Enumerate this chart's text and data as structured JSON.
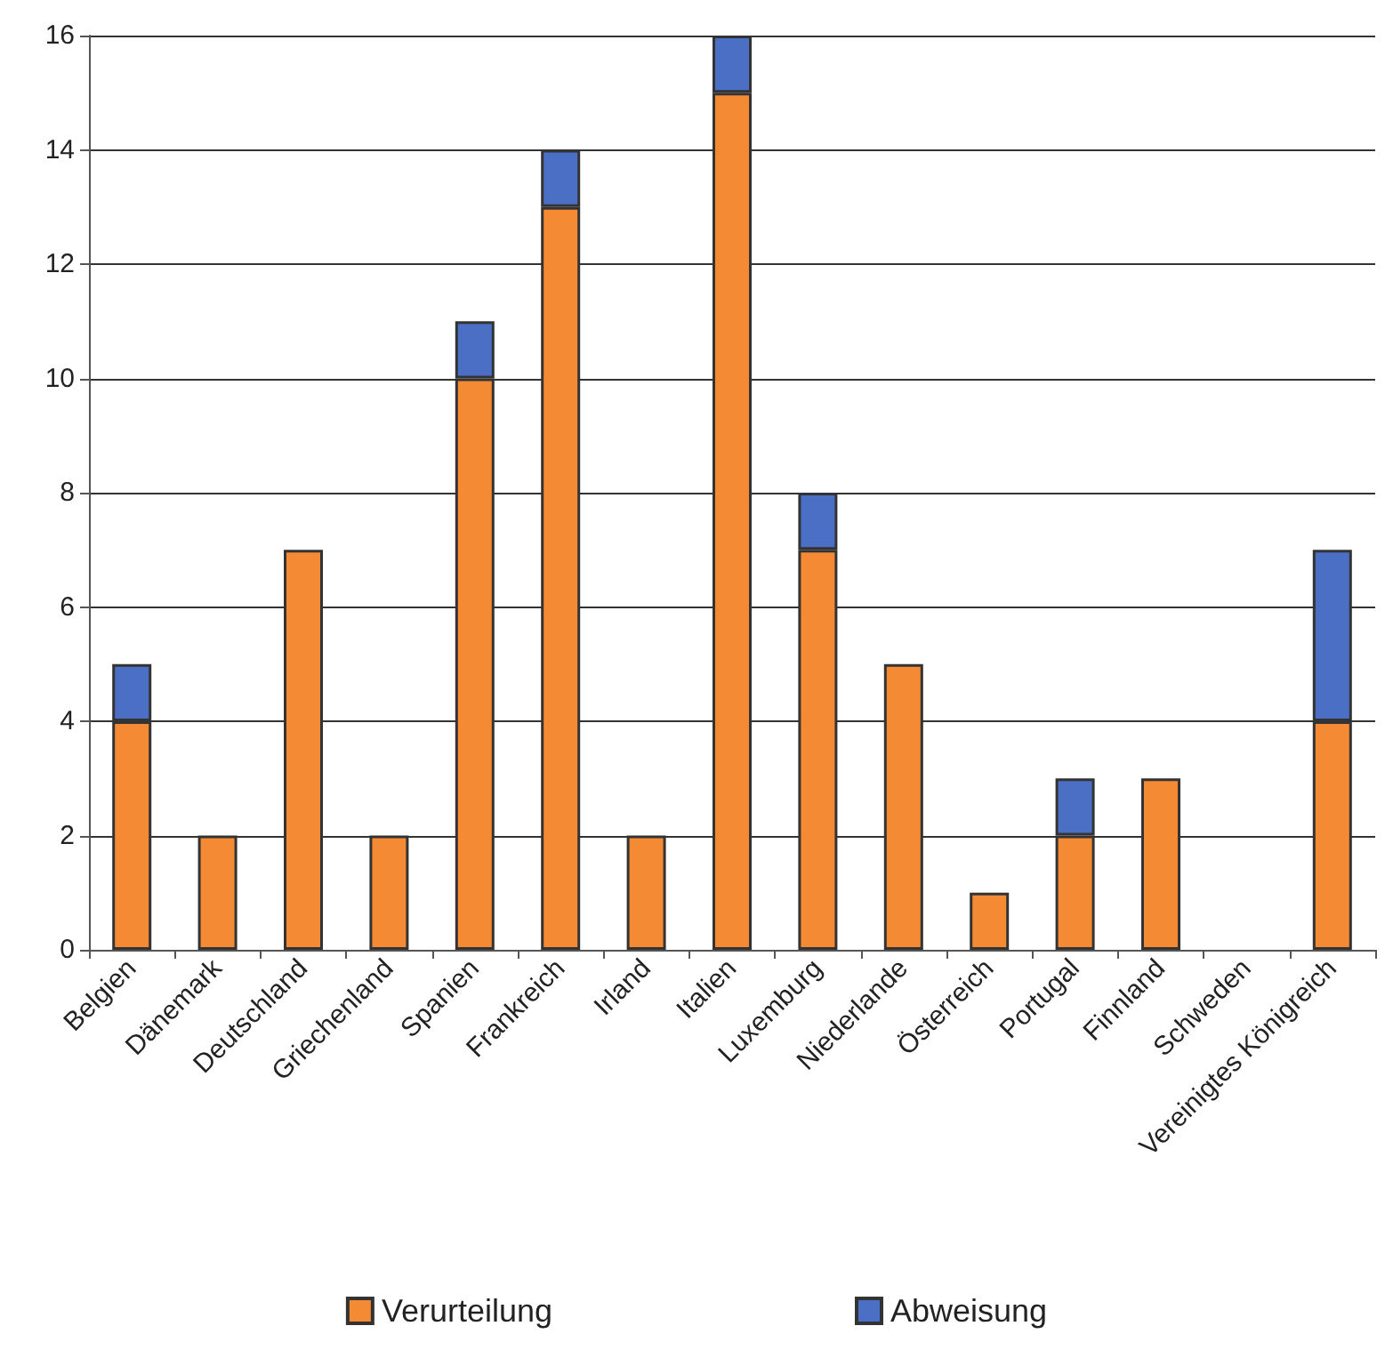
{
  "chart_data": {
    "type": "bar",
    "stacked": true,
    "categories": [
      "Belgien",
      "Dänemark",
      "Deutschland",
      "Griechenland",
      "Spanien",
      "Frankreich",
      "Irland",
      "Italien",
      "Luxemburg",
      "Niederlande",
      "Österreich",
      "Portugal",
      "Finnland",
      "Schweden",
      "Vereinigtes Königreich"
    ],
    "series": [
      {
        "name": "Verurteilung",
        "color": "#f58a34",
        "values": [
          4,
          2,
          7,
          2,
          10,
          13,
          2,
          15,
          7,
          5,
          1,
          2,
          3,
          0,
          4
        ]
      },
      {
        "name": "Abweisung",
        "color": "#4a6fc4",
        "values": [
          1,
          0,
          0,
          0,
          1,
          1,
          0,
          1,
          1,
          0,
          0,
          1,
          0,
          0,
          3
        ]
      }
    ],
    "ylim": [
      0,
      16
    ],
    "yticks": [
      0,
      2,
      4,
      6,
      8,
      10,
      12,
      14,
      16
    ],
    "grid": "y",
    "legend": "bottom"
  }
}
